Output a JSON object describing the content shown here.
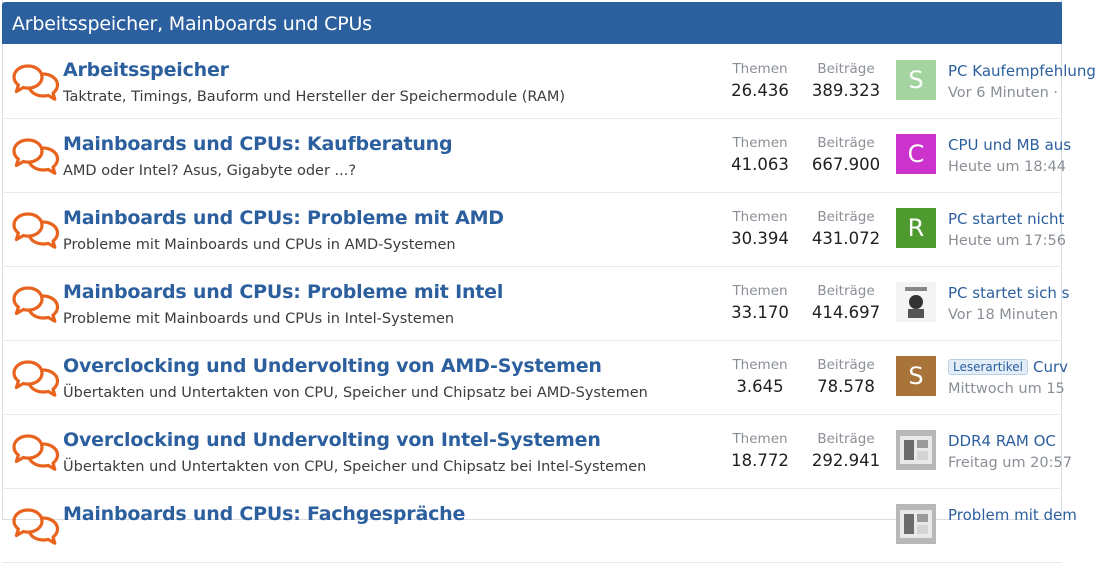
{
  "category": {
    "title": "Arbeitsspeicher, Mainboards und CPUs"
  },
  "colors": {
    "header_bg": "#2c5f9e",
    "link": "#2c5f9e",
    "forum_icon": "#e8631d"
  },
  "stat_labels": {
    "themen": "Themen",
    "beitraege": "Beiträge"
  },
  "forums": [
    {
      "title": "Arbeitsspeicher",
      "description": "Taktrate, Timings, Bauform und Hersteller der Speichermodule (RAM)",
      "themen": "26.436",
      "beitraege": "389.323",
      "latest": {
        "avatar_letter": "S",
        "avatar_color": "#a4d4a0",
        "title": "PC Kaufempfehlung",
        "badge": "",
        "meta": "Vor 6 Minuten · "
      }
    },
    {
      "title": "Mainboards und CPUs: Kaufberatung",
      "description": "AMD oder Intel? Asus, Gigabyte oder ...?",
      "themen": "41.063",
      "beitraege": "667.900",
      "latest": {
        "avatar_letter": "C",
        "avatar_color": "#cc33cc",
        "title": "CPU und MB aus",
        "badge": "",
        "meta": "Heute um 18:44"
      }
    },
    {
      "title": "Mainboards und CPUs: Probleme mit AMD",
      "description": "Probleme mit Mainboards und CPUs in AMD-Systemen",
      "themen": "30.394",
      "beitraege": "431.072",
      "latest": {
        "avatar_letter": "R",
        "avatar_color": "#4e9a2e",
        "title": "PC startet nicht",
        "badge": "",
        "meta": "Heute um 17:56"
      }
    },
    {
      "title": "Mainboards und CPUs: Probleme mit Intel",
      "description": "Probleme mit Mainboards und CPUs in Intel-Systemen",
      "themen": "33.170",
      "beitraege": "414.697",
      "latest": {
        "avatar_letter": "",
        "avatar_color": "#f2f2f2",
        "title": "PC startet sich s",
        "badge": "",
        "meta": "Vor 18 Minuten"
      }
    },
    {
      "title": "Overclocking und Undervolting von AMD-Systemen",
      "description": "Übertakten und Untertakten von CPU, Speicher und Chipsatz bei AMD-Systemen",
      "themen": "3.645",
      "beitraege": "78.578",
      "latest": {
        "avatar_letter": "S",
        "avatar_color": "#a8743a",
        "title": "Curv",
        "badge": "Leserartikel",
        "meta": "Mittwoch um 15"
      }
    },
    {
      "title": "Overclocking und Undervolting von Intel-Systemen",
      "description": "Übertakten und Untertakten von CPU, Speicher und Chipsatz bei Intel-Systemen",
      "themen": "18.772",
      "beitraege": "292.941",
      "latest": {
        "avatar_letter": "",
        "avatar_color": "#9a9a9a",
        "title": "DDR4 RAM OC",
        "badge": "",
        "meta": "Freitag um 20:57"
      }
    },
    {
      "title": "Mainboards und CPUs: Fachgespräche",
      "description": "",
      "themen": "",
      "beitraege": "",
      "latest": {
        "avatar_letter": "",
        "avatar_color": "#2a3a7a",
        "title": "Problem mit dem",
        "badge": "",
        "meta": ""
      }
    }
  ]
}
